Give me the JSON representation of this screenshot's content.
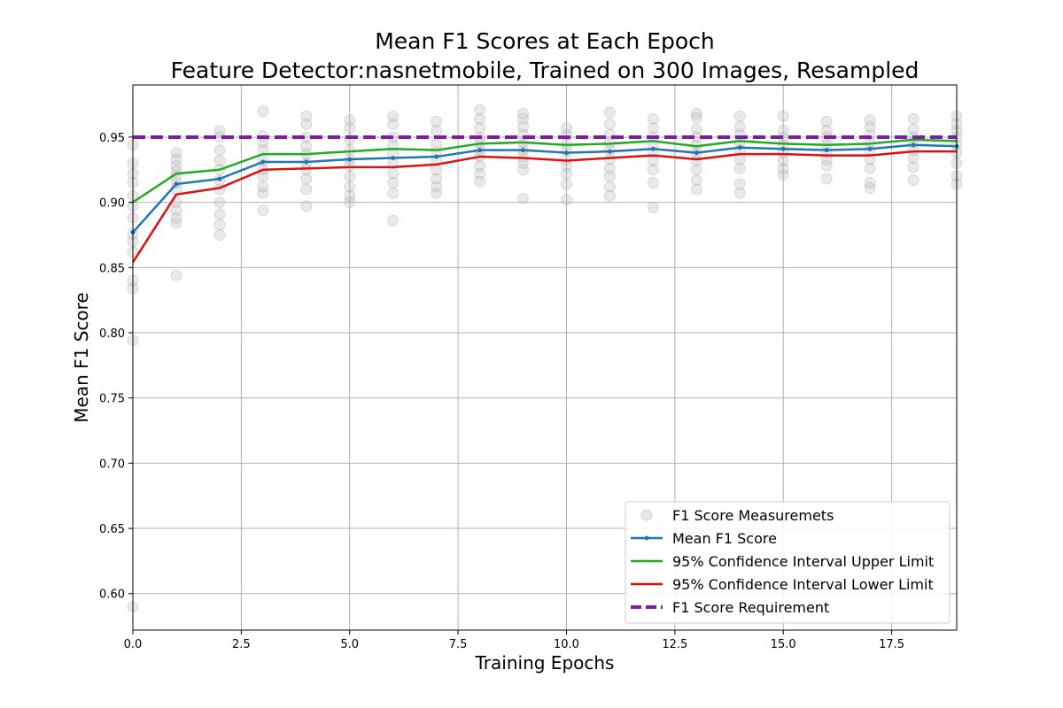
{
  "chart_data": {
    "type": "line",
    "title": "Mean F1 Scores at Each Epoch",
    "subtitle": "Feature Detector:nasnetmobile, Trained on 300 Images, Resampled",
    "xlabel": "Training Epochs",
    "ylabel": "Mean F1 Score",
    "xlim": [
      0,
      19
    ],
    "ylim": [
      0.572,
      0.99
    ],
    "x_ticks": [
      0.0,
      2.5,
      5.0,
      7.5,
      10.0,
      12.5,
      15.0,
      17.5
    ],
    "x_tick_labels": [
      "0.0",
      "2.5",
      "5.0",
      "7.5",
      "10.0",
      "12.5",
      "15.0",
      "17.5"
    ],
    "y_ticks": [
      0.6,
      0.65,
      0.7,
      0.75,
      0.8,
      0.85,
      0.9,
      0.95
    ],
    "y_tick_labels": [
      "0.60",
      "0.65",
      "0.70",
      "0.75",
      "0.80",
      "0.85",
      "0.90",
      "0.95"
    ],
    "grid": true,
    "legend_position": "lower-right",
    "x": [
      0,
      1,
      2,
      3,
      4,
      5,
      6,
      7,
      8,
      9,
      10,
      11,
      12,
      13,
      14,
      15,
      16,
      17,
      18,
      19
    ],
    "series": [
      {
        "name": "Mean F1 Score",
        "color": "#1f77b4",
        "style": "solid-marker",
        "values": [
          0.877,
          0.914,
          0.918,
          0.931,
          0.931,
          0.933,
          0.934,
          0.935,
          0.94,
          0.94,
          0.938,
          0.939,
          0.941,
          0.938,
          0.942,
          0.941,
          0.94,
          0.941,
          0.944,
          0.943
        ]
      },
      {
        "name": "95% Confidence Interval Upper Limit",
        "color": "#22aa22",
        "style": "solid",
        "values": [
          0.9,
          0.922,
          0.925,
          0.937,
          0.937,
          0.939,
          0.941,
          0.94,
          0.945,
          0.946,
          0.944,
          0.945,
          0.947,
          0.943,
          0.947,
          0.945,
          0.944,
          0.945,
          0.948,
          0.947
        ]
      },
      {
        "name": "95% Confidence Interval Lower Limit",
        "color": "#dd1111",
        "style": "solid",
        "values": [
          0.854,
          0.906,
          0.911,
          0.925,
          0.926,
          0.927,
          0.927,
          0.929,
          0.935,
          0.934,
          0.932,
          0.934,
          0.936,
          0.933,
          0.937,
          0.937,
          0.936,
          0.936,
          0.939,
          0.939
        ]
      },
      {
        "name": "F1 Score Requirement",
        "color": "#7b1fa2",
        "style": "dashed",
        "values": [
          0.95,
          0.95,
          0.95,
          0.95,
          0.95,
          0.95,
          0.95,
          0.95,
          0.95,
          0.95,
          0.95,
          0.95,
          0.95,
          0.95,
          0.95,
          0.95,
          0.95,
          0.95,
          0.95,
          0.95
        ]
      }
    ],
    "scatter": {
      "name": "F1 Score Measuremets",
      "color": "#bbbbbb",
      "points": [
        [
          0,
          0.59
        ],
        [
          0,
          0.794
        ],
        [
          0,
          0.834
        ],
        [
          0,
          0.84
        ],
        [
          0,
          0.862
        ],
        [
          0,
          0.87
        ],
        [
          0,
          0.876
        ],
        [
          0,
          0.888
        ],
        [
          0,
          0.897
        ],
        [
          0,
          0.905
        ],
        [
          0,
          0.915
        ],
        [
          0,
          0.922
        ],
        [
          0,
          0.93
        ],
        [
          0,
          0.944
        ],
        [
          1,
          0.844
        ],
        [
          1,
          0.884
        ],
        [
          1,
          0.888
        ],
        [
          1,
          0.894
        ],
        [
          1,
          0.9
        ],
        [
          1,
          0.91
        ],
        [
          1,
          0.915
        ],
        [
          1,
          0.92
        ],
        [
          1,
          0.924
        ],
        [
          1,
          0.928
        ],
        [
          1,
          0.933
        ],
        [
          1,
          0.938
        ],
        [
          2,
          0.875
        ],
        [
          2,
          0.883
        ],
        [
          2,
          0.891
        ],
        [
          2,
          0.9
        ],
        [
          2,
          0.91
        ],
        [
          2,
          0.917
        ],
        [
          2,
          0.925
        ],
        [
          2,
          0.932
        ],
        [
          2,
          0.94
        ],
        [
          2,
          0.95
        ],
        [
          2,
          0.955
        ],
        [
          3,
          0.894
        ],
        [
          3,
          0.907
        ],
        [
          3,
          0.912
        ],
        [
          3,
          0.92
        ],
        [
          3,
          0.925
        ],
        [
          3,
          0.932
        ],
        [
          3,
          0.94
        ],
        [
          3,
          0.946
        ],
        [
          3,
          0.951
        ],
        [
          3,
          0.97
        ],
        [
          4,
          0.897
        ],
        [
          4,
          0.91
        ],
        [
          4,
          0.918
        ],
        [
          4,
          0.925
        ],
        [
          4,
          0.93
        ],
        [
          4,
          0.937
        ],
        [
          4,
          0.943
        ],
        [
          4,
          0.95
        ],
        [
          4,
          0.96
        ],
        [
          4,
          0.966
        ],
        [
          5,
          0.9
        ],
        [
          5,
          0.905
        ],
        [
          5,
          0.912
        ],
        [
          5,
          0.92
        ],
        [
          5,
          0.928
        ],
        [
          5,
          0.933
        ],
        [
          5,
          0.94
        ],
        [
          5,
          0.948
        ],
        [
          5,
          0.957
        ],
        [
          5,
          0.963
        ],
        [
          6,
          0.886
        ],
        [
          6,
          0.907
        ],
        [
          6,
          0.915
        ],
        [
          6,
          0.922
        ],
        [
          6,
          0.93
        ],
        [
          6,
          0.937
        ],
        [
          6,
          0.944
        ],
        [
          6,
          0.95
        ],
        [
          6,
          0.96
        ],
        [
          6,
          0.966
        ],
        [
          7,
          0.907
        ],
        [
          7,
          0.912
        ],
        [
          7,
          0.918
        ],
        [
          7,
          0.925
        ],
        [
          7,
          0.932
        ],
        [
          7,
          0.938
        ],
        [
          7,
          0.944
        ],
        [
          7,
          0.955
        ],
        [
          7,
          0.962
        ],
        [
          8,
          0.916
        ],
        [
          8,
          0.922
        ],
        [
          8,
          0.928
        ],
        [
          8,
          0.935
        ],
        [
          8,
          0.94
        ],
        [
          8,
          0.946
        ],
        [
          8,
          0.95
        ],
        [
          8,
          0.957
        ],
        [
          8,
          0.964
        ],
        [
          8,
          0.971
        ],
        [
          9,
          0.903
        ],
        [
          9,
          0.925
        ],
        [
          9,
          0.93
        ],
        [
          9,
          0.935
        ],
        [
          9,
          0.94
        ],
        [
          9,
          0.946
        ],
        [
          9,
          0.952
        ],
        [
          9,
          0.958
        ],
        [
          9,
          0.964
        ],
        [
          9,
          0.968
        ],
        [
          10,
          0.902
        ],
        [
          10,
          0.914
        ],
        [
          10,
          0.922
        ],
        [
          10,
          0.928
        ],
        [
          10,
          0.933
        ],
        [
          10,
          0.94
        ],
        [
          10,
          0.945
        ],
        [
          10,
          0.952
        ],
        [
          10,
          0.957
        ],
        [
          11,
          0.905
        ],
        [
          11,
          0.912
        ],
        [
          11,
          0.92
        ],
        [
          11,
          0.926
        ],
        [
          11,
          0.933
        ],
        [
          11,
          0.94
        ],
        [
          11,
          0.946
        ],
        [
          11,
          0.952
        ],
        [
          11,
          0.96
        ],
        [
          11,
          0.969
        ],
        [
          12,
          0.896
        ],
        [
          12,
          0.915
        ],
        [
          12,
          0.925
        ],
        [
          12,
          0.932
        ],
        [
          12,
          0.938
        ],
        [
          12,
          0.944
        ],
        [
          12,
          0.95
        ],
        [
          12,
          0.957
        ],
        [
          12,
          0.964
        ],
        [
          13,
          0.91
        ],
        [
          13,
          0.917
        ],
        [
          13,
          0.925
        ],
        [
          13,
          0.932
        ],
        [
          13,
          0.938
        ],
        [
          13,
          0.944
        ],
        [
          13,
          0.95
        ],
        [
          13,
          0.956
        ],
        [
          13,
          0.965
        ],
        [
          13,
          0.968
        ],
        [
          14,
          0.907
        ],
        [
          14,
          0.914
        ],
        [
          14,
          0.926
        ],
        [
          14,
          0.933
        ],
        [
          14,
          0.94
        ],
        [
          14,
          0.946
        ],
        [
          14,
          0.952
        ],
        [
          14,
          0.958
        ],
        [
          14,
          0.966
        ],
        [
          15,
          0.921
        ],
        [
          15,
          0.926
        ],
        [
          15,
          0.932
        ],
        [
          15,
          0.938
        ],
        [
          15,
          0.944
        ],
        [
          15,
          0.95
        ],
        [
          15,
          0.955
        ],
        [
          15,
          0.966
        ],
        [
          16,
          0.918
        ],
        [
          16,
          0.928
        ],
        [
          16,
          0.933
        ],
        [
          16,
          0.938
        ],
        [
          16,
          0.944
        ],
        [
          16,
          0.95
        ],
        [
          16,
          0.955
        ],
        [
          16,
          0.962
        ],
        [
          17,
          0.911
        ],
        [
          17,
          0.915
        ],
        [
          17,
          0.926
        ],
        [
          17,
          0.933
        ],
        [
          17,
          0.94
        ],
        [
          17,
          0.946
        ],
        [
          17,
          0.952
        ],
        [
          17,
          0.958
        ],
        [
          17,
          0.963
        ],
        [
          18,
          0.917
        ],
        [
          18,
          0.927
        ],
        [
          18,
          0.934
        ],
        [
          18,
          0.94
        ],
        [
          18,
          0.946
        ],
        [
          18,
          0.95
        ],
        [
          18,
          0.956
        ],
        [
          18,
          0.964
        ],
        [
          19,
          0.914
        ],
        [
          19,
          0.92
        ],
        [
          19,
          0.93
        ],
        [
          19,
          0.938
        ],
        [
          19,
          0.944
        ],
        [
          19,
          0.95
        ],
        [
          19,
          0.955
        ],
        [
          19,
          0.96
        ],
        [
          19,
          0.966
        ]
      ]
    },
    "legend": [
      {
        "label": "F1 Score Measuremets",
        "kind": "marker"
      },
      {
        "label": "Mean F1 Score",
        "kind": "line-marker"
      },
      {
        "label": "95% Confidence Interval Upper Limit",
        "kind": "line"
      },
      {
        "label": "95% Confidence Interval Lower Limit",
        "kind": "line"
      },
      {
        "label": "F1 Score Requirement",
        "kind": "dashed"
      }
    ]
  }
}
